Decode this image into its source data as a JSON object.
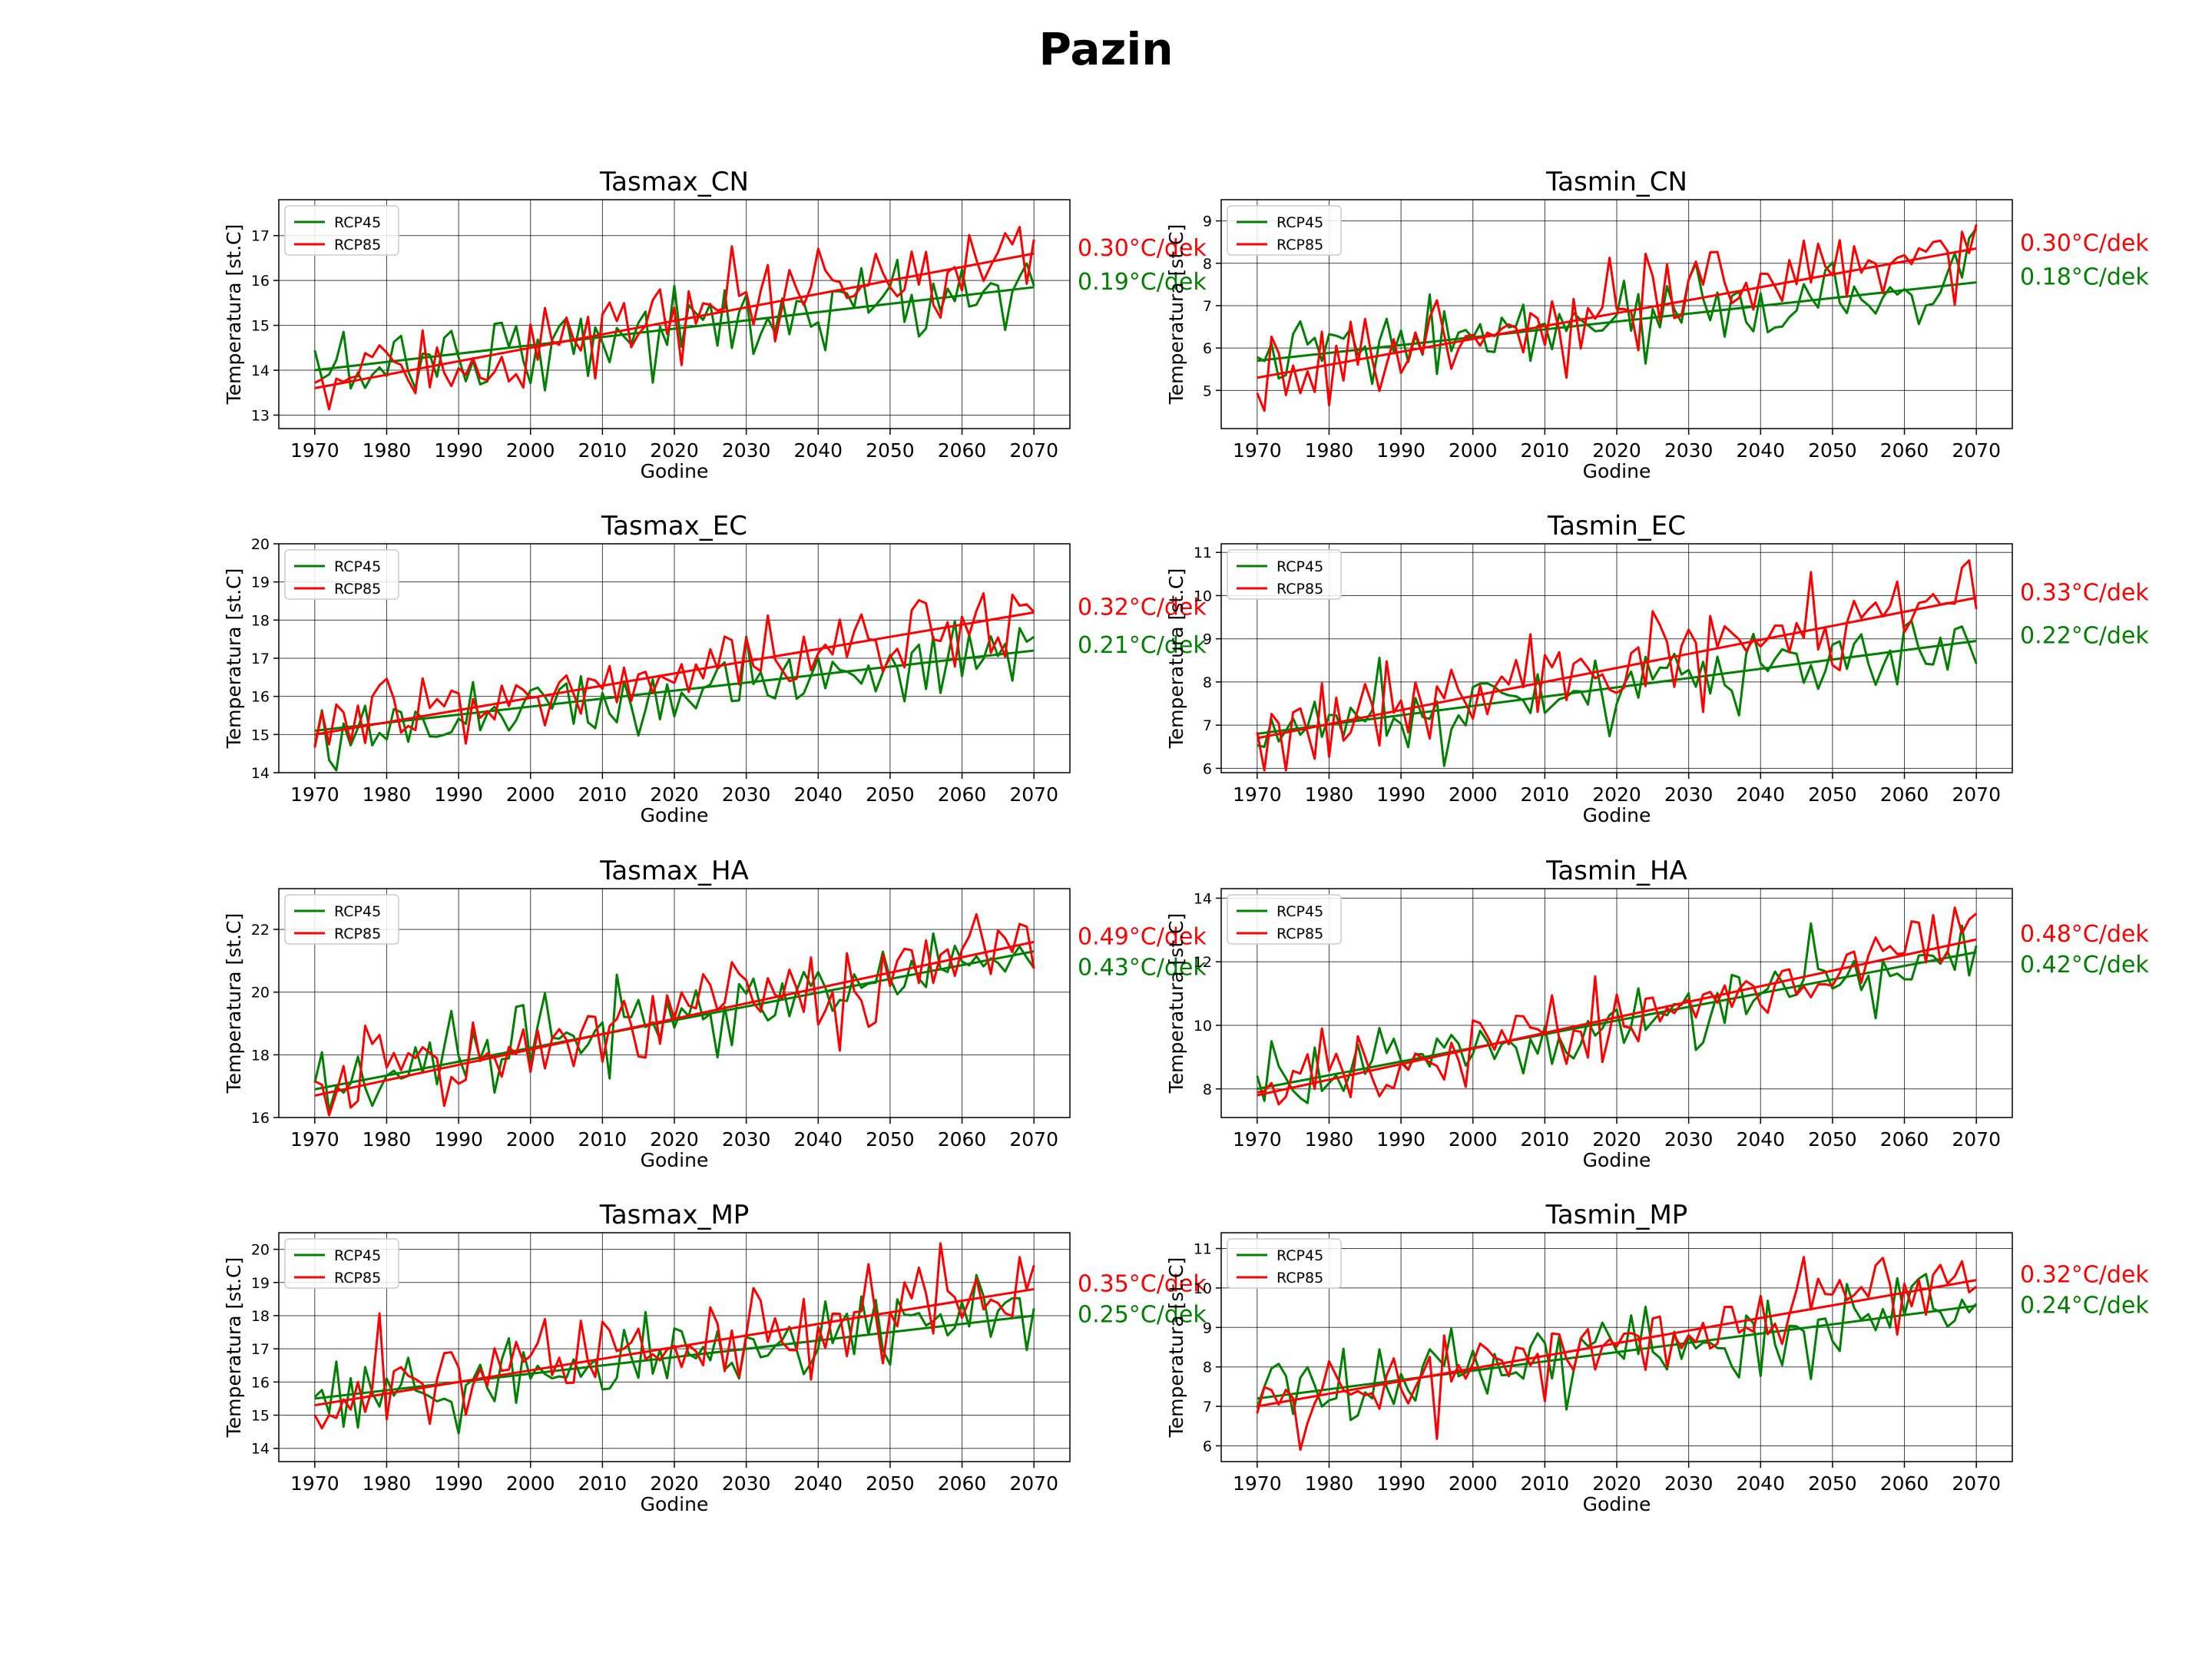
{
  "figure": {
    "title": "Pazin"
  },
  "colors": {
    "rcp45": "#008000",
    "rcp85": "#ff0000",
    "axis": "#000000",
    "grid": "#000000"
  },
  "chart_data": [
    {
      "type": "line",
      "title": "Tasmax_CN",
      "xlabel": "Godine",
      "ylabel": "Temperatura [st.C]",
      "xlim": [
        1965,
        2075
      ],
      "ylim": [
        12.7,
        17.8
      ],
      "xticks": [
        1970,
        1980,
        1990,
        2000,
        2010,
        2020,
        2030,
        2040,
        2050,
        2060,
        2070
      ],
      "yticks": [
        13,
        14,
        15,
        16,
        17
      ],
      "grid": true,
      "legend": "top-left",
      "series": [
        {
          "name": "RCP45",
          "trend_start": 14.0,
          "trend_end": 15.85,
          "trend_label": "0.30°C/dek"
        },
        {
          "name": "RCP85",
          "trend_start": 13.6,
          "trend_end": 16.6,
          "trend_label": "0.19°C/dek"
        }
      ]
    },
    {
      "type": "line",
      "title": "Tasmin_CN",
      "xlabel": "Godine",
      "ylabel": "Temperatura [st.C]",
      "xlim": [
        1965,
        2075
      ],
      "ylim": [
        4.1,
        9.5
      ],
      "xticks": [
        1970,
        1980,
        1990,
        2000,
        2010,
        2020,
        2030,
        2040,
        2050,
        2060,
        2070
      ],
      "yticks": [
        5,
        6,
        7,
        8,
        9
      ],
      "grid": true,
      "legend": "top-left",
      "series": [
        {
          "name": "RCP45",
          "trend_start": 5.7,
          "trend_end": 7.55,
          "trend_label": "0.30°C/dek"
        },
        {
          "name": "RCP85",
          "trend_start": 5.3,
          "trend_end": 8.35,
          "trend_label": "0.18°C/dek"
        }
      ]
    },
    {
      "type": "line",
      "title": "Tasmax_EC",
      "xlabel": "Godine",
      "ylabel": "Temperatura [st.C]",
      "xlim": [
        1965,
        2075
      ],
      "ylim": [
        14,
        20
      ],
      "xticks": [
        1970,
        1980,
        1990,
        2000,
        2010,
        2020,
        2030,
        2040,
        2050,
        2060,
        2070
      ],
      "yticks": [
        14,
        15,
        16,
        17,
        18,
        19,
        20
      ],
      "grid": true,
      "legend": "top-left",
      "series": [
        {
          "name": "RCP45",
          "trend_start": 15.1,
          "trend_end": 17.2,
          "trend_label": "0.32°C/dek"
        },
        {
          "name": "RCP85",
          "trend_start": 15.0,
          "trend_end": 18.2,
          "trend_label": "0.21°C/dek"
        }
      ]
    },
    {
      "type": "line",
      "title": "Tasmin_EC",
      "xlabel": "Godine",
      "ylabel": "Temperatura [st.C]",
      "xlim": [
        1965,
        2075
      ],
      "ylim": [
        5.9,
        11.2
      ],
      "xticks": [
        1970,
        1980,
        1990,
        2000,
        2010,
        2020,
        2030,
        2040,
        2050,
        2060,
        2070
      ],
      "yticks": [
        6,
        7,
        8,
        9,
        10,
        11
      ],
      "grid": true,
      "legend": "top-left",
      "series": [
        {
          "name": "RCP45",
          "trend_start": 6.8,
          "trend_end": 8.95,
          "trend_label": "0.33°C/dek"
        },
        {
          "name": "RCP85",
          "trend_start": 6.7,
          "trend_end": 9.95,
          "trend_label": "0.22°C/dek"
        }
      ]
    },
    {
      "type": "line",
      "title": "Tasmax_HA",
      "xlabel": "Godine",
      "ylabel": "Temperatura [st.C]",
      "xlim": [
        1965,
        2075
      ],
      "ylim": [
        16,
        23.3
      ],
      "xticks": [
        1970,
        1980,
        1990,
        2000,
        2010,
        2020,
        2030,
        2040,
        2050,
        2060,
        2070
      ],
      "yticks": [
        16,
        18,
        20,
        22
      ],
      "grid": true,
      "legend": "top-left",
      "series": [
        {
          "name": "RCP45",
          "trend_start": 16.9,
          "trend_end": 21.3,
          "trend_label": "0.49°C/dek"
        },
        {
          "name": "RCP85",
          "trend_start": 16.7,
          "trend_end": 21.6,
          "trend_label": "0.43°C/dek"
        }
      ]
    },
    {
      "type": "line",
      "title": "Tasmin_HA",
      "xlabel": "Godine",
      "ylabel": "Temperatura [st.C]",
      "xlim": [
        1965,
        2075
      ],
      "ylim": [
        7.1,
        14.3
      ],
      "xticks": [
        1970,
        1980,
        1990,
        2000,
        2010,
        2020,
        2030,
        2040,
        2050,
        2060,
        2070
      ],
      "yticks": [
        8,
        10,
        12,
        14
      ],
      "grid": true,
      "legend": "top-left",
      "series": [
        {
          "name": "RCP45",
          "trend_start": 8.0,
          "trend_end": 12.3,
          "trend_label": "0.48°C/dek"
        },
        {
          "name": "RCP85",
          "trend_start": 7.8,
          "trend_end": 12.7,
          "trend_label": "0.42°C/dek"
        }
      ]
    },
    {
      "type": "line",
      "title": "Tasmax_MP",
      "xlabel": "Godine",
      "ylabel": "Temperatura [st.C]",
      "xlim": [
        1965,
        2075
      ],
      "ylim": [
        13.6,
        20.5
      ],
      "xticks": [
        1970,
        1980,
        1990,
        2000,
        2010,
        2020,
        2030,
        2040,
        2050,
        2060,
        2070
      ],
      "yticks": [
        14,
        15,
        16,
        17,
        18,
        19,
        20
      ],
      "grid": true,
      "legend": "top-left",
      "series": [
        {
          "name": "RCP45",
          "trend_start": 15.5,
          "trend_end": 18.0,
          "trend_label": "0.35°C/dek"
        },
        {
          "name": "RCP85",
          "trend_start": 15.3,
          "trend_end": 18.8,
          "trend_label": "0.25°C/dek"
        }
      ]
    },
    {
      "type": "line",
      "title": "Tasmin_MP",
      "xlabel": "Godine",
      "ylabel": "Temperatura [st.C]",
      "xlim": [
        1965,
        2075
      ],
      "ylim": [
        5.6,
        11.4
      ],
      "xticks": [
        1970,
        1980,
        1990,
        2000,
        2010,
        2020,
        2030,
        2040,
        2050,
        2060,
        2070
      ],
      "yticks": [
        6,
        7,
        8,
        9,
        10,
        11
      ],
      "grid": true,
      "legend": "top-left",
      "series": [
        {
          "name": "RCP45",
          "trend_start": 7.2,
          "trend_end": 9.55,
          "trend_label": "0.32°C/dek"
        },
        {
          "name": "RCP85",
          "trend_start": 7.0,
          "trend_end": 10.2,
          "trend_label": "0.24°C/dek"
        }
      ]
    }
  ]
}
